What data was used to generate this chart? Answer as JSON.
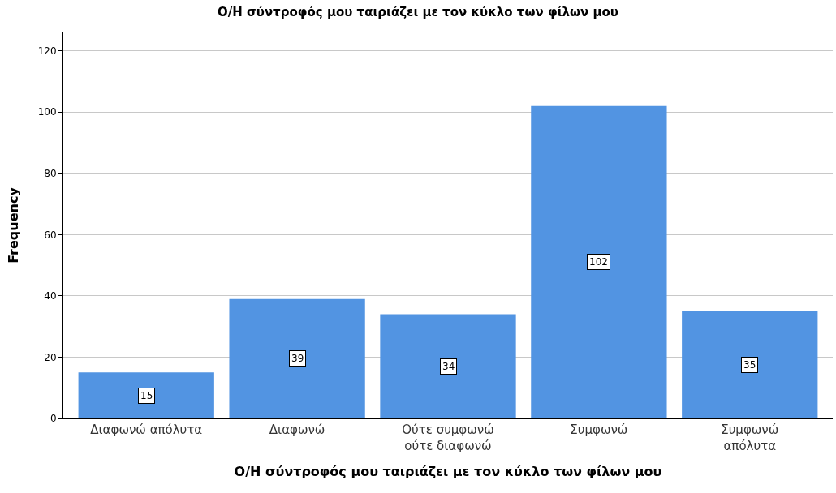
{
  "chart_data": {
    "type": "bar",
    "title": "Ο/Η σύντροφός μου ταιριάζει με τον κύκλο των φίλων μου",
    "xlabel": "Ο/Η σύντροφός μου ταιριάζει με τον κύκλο των φίλων μου",
    "ylabel": "Frequency",
    "categories": [
      "Διαφωνώ απόλυτα",
      "Διαφωνώ",
      "Ούτε συμφωνώ\nούτε διαφωνώ",
      "Συμφωνώ",
      "Συμφωνώ\nαπόλυτα"
    ],
    "values": [
      15,
      39,
      34,
      102,
      35
    ],
    "color": "#5294e2",
    "ylim": [
      0,
      126
    ],
    "yticks": [
      0,
      20,
      40,
      60,
      80,
      100,
      120
    ],
    "grid": "y",
    "data_labels": true
  }
}
